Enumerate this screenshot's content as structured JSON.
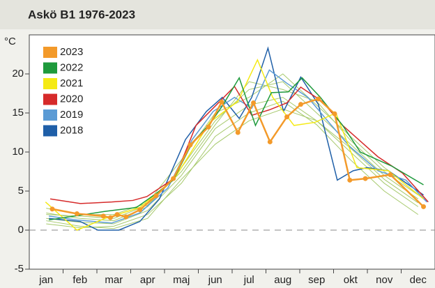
{
  "chart_data": {
    "type": "line",
    "title": "Askö B1 1976-2023",
    "ylabel": "°C",
    "categories": [
      "jan",
      "feb",
      "mar",
      "apr",
      "maj",
      "jun",
      "jul",
      "aug",
      "sep",
      "okt",
      "nov",
      "dec"
    ],
    "xlim": [
      0,
      12
    ],
    "ylim": [
      -5,
      25
    ],
    "yticks": [
      -5,
      0,
      5,
      10,
      15,
      20
    ],
    "zero_line": true,
    "legend": "upper-left",
    "series": [
      {
        "name": "2023",
        "color": "#f39a2a",
        "markers": true,
        "width": 2.5,
        "x": [
          0.68,
          1.41,
          2.19,
          2.4,
          2.6,
          2.86,
          3.27,
          3.75,
          4.26,
          4.76,
          5.3,
          5.69,
          6.17,
          6.63,
          7.12,
          7.62,
          8.03,
          8.55,
          9.03,
          9.48,
          9.94,
          10.68,
          11.66
        ],
        "values": [
          2.7,
          2.1,
          1.8,
          1.6,
          2.0,
          1.7,
          2.6,
          4.4,
          6.6,
          10.9,
          13.2,
          16.4,
          12.5,
          16.3,
          11.3,
          14.5,
          16.1,
          16.8,
          14.9,
          6.4,
          6.6,
          7.1,
          3.0
        ]
      },
      {
        "name": "2022",
        "color": "#1e9a3c",
        "x": [
          0.58,
          2.24,
          3.17,
          3.79,
          4.26,
          4.82,
          5.34,
          5.71,
          6.21,
          6.69,
          7.16,
          7.66,
          8.07,
          8.61,
          9.27,
          9.79,
          10.72,
          11.66
        ],
        "values": [
          1.3,
          2.4,
          2.9,
          4.8,
          6.4,
          11.2,
          13.6,
          15.9,
          19.5,
          13.4,
          17.6,
          17.7,
          19.5,
          17.0,
          13.4,
          10.0,
          8.2,
          5.8
        ]
      },
      {
        "name": "2021",
        "color": "#f5ea14",
        "x": [
          0.48,
          1.41,
          2.24,
          3.27,
          4.31,
          5.34,
          6.17,
          6.75,
          7.2,
          7.83,
          8.45,
          9.07,
          9.69,
          10.62,
          11.66
        ],
        "values": [
          3.6,
          0,
          1.5,
          2.9,
          6.7,
          13.8,
          16.5,
          21.8,
          17.0,
          13.4,
          13.8,
          15.0,
          8.0,
          7.6,
          4.0
        ]
      },
      {
        "name": "2020",
        "color": "#d62a2a",
        "x": [
          0.62,
          1.51,
          2.44,
          3.06,
          3.48,
          4.31,
          4.93,
          5.55,
          6.07,
          6.58,
          7.1,
          7.62,
          8.03,
          8.66,
          9.27,
          10.31,
          11.04,
          11.8
        ],
        "values": [
          4.0,
          3.4,
          3.6,
          3.8,
          4.3,
          6.7,
          13.4,
          16.1,
          18.4,
          14.7,
          15.4,
          16.3,
          18.3,
          16.5,
          13.4,
          9.4,
          7.3,
          3.6
        ]
      },
      {
        "name": "2019",
        "color": "#5b9bd5",
        "x": [
          0.58,
          1.41,
          2.44,
          3.27,
          4.1,
          4.82,
          5.44,
          6.07,
          6.58,
          7.1,
          7.62,
          8.24,
          8.86,
          9.48,
          10.31,
          11.14,
          11.76
        ],
        "values": [
          1.8,
          1.3,
          0.9,
          2.2,
          5.4,
          11.6,
          15.2,
          17.0,
          15.6,
          20.5,
          18.8,
          17.0,
          13.8,
          10.7,
          7.6,
          6.4,
          3.6
        ]
      },
      {
        "name": "2018",
        "color": "#1f5fa8",
        "x": [
          0.58,
          1.51,
          2.03,
          2.65,
          3.27,
          3.85,
          4.62,
          5.24,
          5.71,
          6.21,
          6.58,
          7.06,
          7.52,
          8.03,
          8.55,
          9.11,
          9.58,
          9.99,
          10.62,
          11.66
        ],
        "values": [
          1.5,
          1.1,
          0,
          0,
          1.1,
          4.0,
          11.6,
          15.2,
          17.0,
          14.3,
          17.0,
          23.3,
          15.2,
          19.6,
          16.1,
          6.4,
          7.6,
          8.0,
          7.6,
          4.5
        ]
      },
      {
        "color": "#a6c96c",
        "x": [
          0.5,
          1.5,
          2.5,
          3.5,
          4.5,
          5.5,
          6.5,
          7.5,
          8.5,
          9.5,
          10.5,
          11.5
        ],
        "values": [
          1.5,
          1.0,
          0.8,
          2.5,
          7,
          13,
          16,
          17,
          14,
          10,
          6,
          3
        ]
      },
      {
        "color": "#a6c96c",
        "x": [
          0.5,
          1.5,
          2.5,
          3.5,
          4.5,
          5.5,
          6.5,
          7.5,
          8.5,
          9.5,
          10.5,
          11.5
        ],
        "values": [
          2.2,
          1.5,
          1.2,
          3.0,
          8,
          14,
          18,
          19,
          15,
          11,
          7,
          4
        ]
      },
      {
        "color": "#a6c96c",
        "x": [
          0.5,
          1.5,
          2.5,
          3.5,
          4.5,
          5.5,
          6.5,
          7.5,
          8.5,
          9.5,
          10.5,
          11.5
        ],
        "values": [
          0.8,
          0.3,
          0.5,
          2.0,
          6,
          12,
          15,
          16.5,
          13.5,
          9,
          5,
          2
        ]
      },
      {
        "color": "#a6c96c",
        "x": [
          0.5,
          1.5,
          2.5,
          3.5,
          4.5,
          5.5,
          6.5,
          7.5,
          8.5,
          9.5,
          10.5,
          11.5
        ],
        "values": [
          2.8,
          2.0,
          2.0,
          3.5,
          9,
          15,
          17,
          20,
          16,
          12,
          8,
          5
        ]
      },
      {
        "color": "#a6c96c",
        "x": [
          0.5,
          1.5,
          2.5,
          3.5,
          4.5,
          5.5,
          6.5,
          7.5,
          8.5,
          9.5,
          10.5,
          11.5
        ],
        "values": [
          1.2,
          0.5,
          0.2,
          1.5,
          6.5,
          11,
          14,
          15.5,
          14,
          10.5,
          6.5,
          3.5
        ]
      },
      {
        "color": "#a6c96c",
        "x": [
          0.5,
          1.5,
          2.5,
          3.5,
          4.5,
          5.5,
          6.5,
          7.5,
          8.5,
          9.5,
          10.5,
          11.5
        ],
        "values": [
          2.0,
          1.8,
          1.5,
          3.2,
          7.5,
          13.5,
          19,
          18,
          16.5,
          11.5,
          7.5,
          4.5
        ]
      }
    ]
  }
}
